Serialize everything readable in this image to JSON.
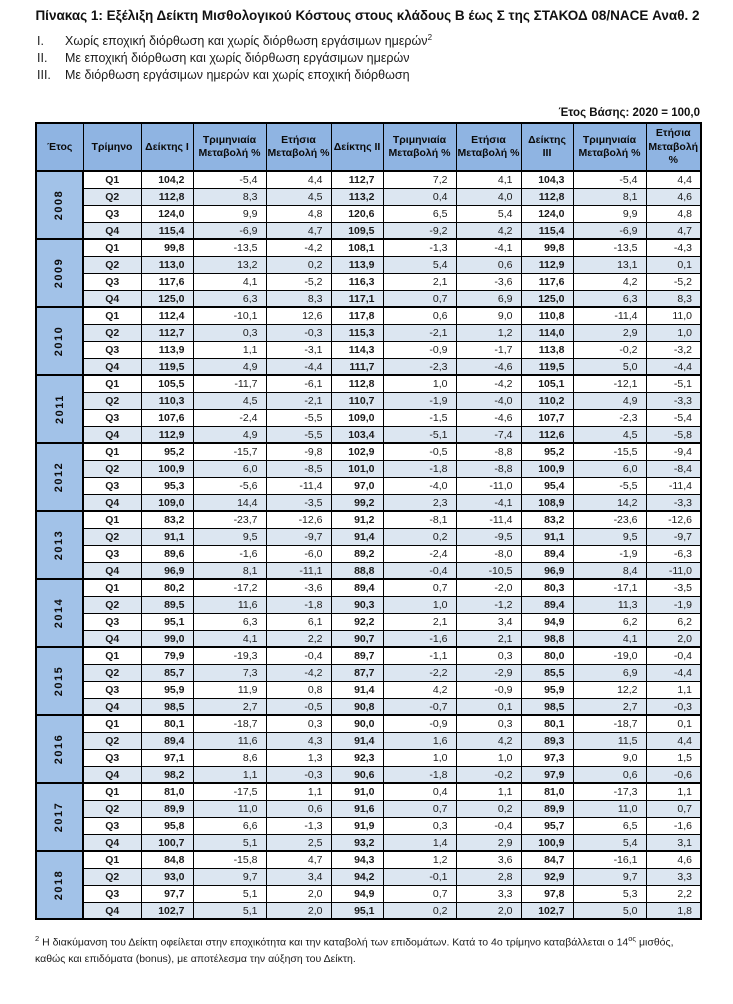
{
  "page": {
    "title": "Πίνακας 1: Εξέλιξη Δείκτη Μισθολογικού Κόστους στους κλάδους Β έως Σ της ΣΤΑΚΟΔ 08/NACE Αναθ. 2",
    "definitions": [
      {
        "num": "I.",
        "text": "Χωρίς εποχική διόρθωση και χωρίς διόρθωση εργάσιμων ημερών",
        "sup": "2"
      },
      {
        "num": "II.",
        "text": "Με εποχική διόρθωση και χωρίς διόρθωση εργάσιμων ημερών",
        "sup": ""
      },
      {
        "num": "III.",
        "text": "Με διόρθωση εργάσιμων ημερών και χωρίς εποχική διόρθωση",
        "sup": ""
      }
    ],
    "base_year": "Έτος Βάσης: 2020 = 100,0"
  },
  "colors": {
    "header_blue": "#8FB4E2",
    "year_blue": "#A2C2E8",
    "alt_row_blue": "#DCE6F1",
    "border": "#000000"
  },
  "table": {
    "headers": [
      "Έτος",
      "Τρίμηνο",
      "Δείκτης I",
      "Τριμηνιαία Μεταβολή %",
      "Ετήσια Μεταβολή %",
      "Δείκτης II",
      "Τριμηνιαία Μεταβολή %",
      "Ετήσια Μεταβολή %",
      "Δείκτης III",
      "Τριμηνιαία Μεταβολή %",
      "Ετήσια Μεταβολή %"
    ],
    "years": [
      {
        "year": "2008",
        "rows": [
          [
            "Q1",
            "104,2",
            "-5,4",
            "4,4",
            "112,7",
            "7,2",
            "4,1",
            "104,3",
            "-5,4",
            "4,4"
          ],
          [
            "Q2",
            "112,8",
            "8,3",
            "4,5",
            "113,2",
            "0,4",
            "4,0",
            "112,8",
            "8,1",
            "4,6"
          ],
          [
            "Q3",
            "124,0",
            "9,9",
            "4,8",
            "120,6",
            "6,5",
            "5,4",
            "124,0",
            "9,9",
            "4,8"
          ],
          [
            "Q4",
            "115,4",
            "-6,9",
            "4,7",
            "109,5",
            "-9,2",
            "4,2",
            "115,4",
            "-6,9",
            "4,7"
          ]
        ]
      },
      {
        "year": "2009",
        "rows": [
          [
            "Q1",
            "99,8",
            "-13,5",
            "-4,2",
            "108,1",
            "-1,3",
            "-4,1",
            "99,8",
            "-13,5",
            "-4,3"
          ],
          [
            "Q2",
            "113,0",
            "13,2",
            "0,2",
            "113,9",
            "5,4",
            "0,6",
            "112,9",
            "13,1",
            "0,1"
          ],
          [
            "Q3",
            "117,6",
            "4,1",
            "-5,2",
            "116,3",
            "2,1",
            "-3,6",
            "117,6",
            "4,2",
            "-5,2"
          ],
          [
            "Q4",
            "125,0",
            "6,3",
            "8,3",
            "117,1",
            "0,7",
            "6,9",
            "125,0",
            "6,3",
            "8,3"
          ]
        ]
      },
      {
        "year": "2010",
        "rows": [
          [
            "Q1",
            "112,4",
            "-10,1",
            "12,6",
            "117,8",
            "0,6",
            "9,0",
            "110,8",
            "-11,4",
            "11,0"
          ],
          [
            "Q2",
            "112,7",
            "0,3",
            "-0,3",
            "115,3",
            "-2,1",
            "1,2",
            "114,0",
            "2,9",
            "1,0"
          ],
          [
            "Q3",
            "113,9",
            "1,1",
            "-3,1",
            "114,3",
            "-0,9",
            "-1,7",
            "113,8",
            "-0,2",
            "-3,2"
          ],
          [
            "Q4",
            "119,5",
            "4,9",
            "-4,4",
            "111,7",
            "-2,3",
            "-4,6",
            "119,5",
            "5,0",
            "-4,4"
          ]
        ]
      },
      {
        "year": "2011",
        "rows": [
          [
            "Q1",
            "105,5",
            "-11,7",
            "-6,1",
            "112,8",
            "1,0",
            "-4,2",
            "105,1",
            "-12,1",
            "-5,1"
          ],
          [
            "Q2",
            "110,3",
            "4,5",
            "-2,1",
            "110,7",
            "-1,9",
            "-4,0",
            "110,2",
            "4,9",
            "-3,3"
          ],
          [
            "Q3",
            "107,6",
            "-2,4",
            "-5,5",
            "109,0",
            "-1,5",
            "-4,6",
            "107,7",
            "-2,3",
            "-5,4"
          ],
          [
            "Q4",
            "112,9",
            "4,9",
            "-5,5",
            "103,4",
            "-5,1",
            "-7,4",
            "112,6",
            "4,5",
            "-5,8"
          ]
        ]
      },
      {
        "year": "2012",
        "rows": [
          [
            "Q1",
            "95,2",
            "-15,7",
            "-9,8",
            "102,9",
            "-0,5",
            "-8,8",
            "95,2",
            "-15,5",
            "-9,4"
          ],
          [
            "Q2",
            "100,9",
            "6,0",
            "-8,5",
            "101,0",
            "-1,8",
            "-8,8",
            "100,9",
            "6,0",
            "-8,4"
          ],
          [
            "Q3",
            "95,3",
            "-5,6",
            "-11,4",
            "97,0",
            "-4,0",
            "-11,0",
            "95,4",
            "-5,5",
            "-11,4"
          ],
          [
            "Q4",
            "109,0",
            "14,4",
            "-3,5",
            "99,2",
            "2,3",
            "-4,1",
            "108,9",
            "14,2",
            "-3,3"
          ]
        ]
      },
      {
        "year": "2013",
        "rows": [
          [
            "Q1",
            "83,2",
            "-23,7",
            "-12,6",
            "91,2",
            "-8,1",
            "-11,4",
            "83,2",
            "-23,6",
            "-12,6"
          ],
          [
            "Q2",
            "91,1",
            "9,5",
            "-9,7",
            "91,4",
            "0,2",
            "-9,5",
            "91,1",
            "9,5",
            "-9,7"
          ],
          [
            "Q3",
            "89,6",
            "-1,6",
            "-6,0",
            "89,2",
            "-2,4",
            "-8,0",
            "89,4",
            "-1,9",
            "-6,3"
          ],
          [
            "Q4",
            "96,9",
            "8,1",
            "-11,1",
            "88,8",
            "-0,4",
            "-10,5",
            "96,9",
            "8,4",
            "-11,0"
          ]
        ]
      },
      {
        "year": "2014",
        "rows": [
          [
            "Q1",
            "80,2",
            "-17,2",
            "-3,6",
            "89,4",
            "0,7",
            "-2,0",
            "80,3",
            "-17,1",
            "-3,5"
          ],
          [
            "Q2",
            "89,5",
            "11,6",
            "-1,8",
            "90,3",
            "1,0",
            "-1,2",
            "89,4",
            "11,3",
            "-1,9"
          ],
          [
            "Q3",
            "95,1",
            "6,3",
            "6,1",
            "92,2",
            "2,1",
            "3,4",
            "94,9",
            "6,2",
            "6,2"
          ],
          [
            "Q4",
            "99,0",
            "4,1",
            "2,2",
            "90,7",
            "-1,6",
            "2,1",
            "98,8",
            "4,1",
            "2,0"
          ]
        ]
      },
      {
        "year": "2015",
        "rows": [
          [
            "Q1",
            "79,9",
            "-19,3",
            "-0,4",
            "89,7",
            "-1,1",
            "0,3",
            "80,0",
            "-19,0",
            "-0,4"
          ],
          [
            "Q2",
            "85,7",
            "7,3",
            "-4,2",
            "87,7",
            "-2,2",
            "-2,9",
            "85,5",
            "6,9",
            "-4,4"
          ],
          [
            "Q3",
            "95,9",
            "11,9",
            "0,8",
            "91,4",
            "4,2",
            "-0,9",
            "95,9",
            "12,2",
            "1,1"
          ],
          [
            "Q4",
            "98,5",
            "2,7",
            "-0,5",
            "90,8",
            "-0,7",
            "0,1",
            "98,5",
            "2,7",
            "-0,3"
          ]
        ]
      },
      {
        "year": "2016",
        "rows": [
          [
            "Q1",
            "80,1",
            "-18,7",
            "0,3",
            "90,0",
            "-0,9",
            "0,3",
            "80,1",
            "-18,7",
            "0,1"
          ],
          [
            "Q2",
            "89,4",
            "11,6",
            "4,3",
            "91,4",
            "1,6",
            "4,2",
            "89,3",
            "11,5",
            "4,4"
          ],
          [
            "Q3",
            "97,1",
            "8,6",
            "1,3",
            "92,3",
            "1,0",
            "1,0",
            "97,3",
            "9,0",
            "1,5"
          ],
          [
            "Q4",
            "98,2",
            "1,1",
            "-0,3",
            "90,6",
            "-1,8",
            "-0,2",
            "97,9",
            "0,6",
            "-0,6"
          ]
        ]
      },
      {
        "year": "2017",
        "rows": [
          [
            "Q1",
            "81,0",
            "-17,5",
            "1,1",
            "91,0",
            "0,4",
            "1,1",
            "81,0",
            "-17,3",
            "1,1"
          ],
          [
            "Q2",
            "89,9",
            "11,0",
            "0,6",
            "91,6",
            "0,7",
            "0,2",
            "89,9",
            "11,0",
            "0,7"
          ],
          [
            "Q3",
            "95,8",
            "6,6",
            "-1,3",
            "91,9",
            "0,3",
            "-0,4",
            "95,7",
            "6,5",
            "-1,6"
          ],
          [
            "Q4",
            "100,7",
            "5,1",
            "2,5",
            "93,2",
            "1,4",
            "2,9",
            "100,9",
            "5,4",
            "3,1"
          ]
        ]
      },
      {
        "year": "2018",
        "rows": [
          [
            "Q1",
            "84,8",
            "-15,8",
            "4,7",
            "94,3",
            "1,2",
            "3,6",
            "84,7",
            "-16,1",
            "4,6"
          ],
          [
            "Q2",
            "93,0",
            "9,7",
            "3,4",
            "94,2",
            "-0,1",
            "2,8",
            "92,9",
            "9,7",
            "3,3"
          ],
          [
            "Q3",
            "97,7",
            "5,1",
            "2,0",
            "94,9",
            "0,7",
            "3,3",
            "97,8",
            "5,3",
            "2,2"
          ],
          [
            "Q4",
            "102,7",
            "5,1",
            "2,0",
            "95,1",
            "0,2",
            "2,0",
            "102,7",
            "5,0",
            "1,8"
          ]
        ]
      }
    ]
  },
  "footnote": {
    "sup1": "2",
    "part1": " Η διακύμανση του Δείκτη οφείλεται στην εποχικότητα και την καταβολή των επιδομάτων. Κατά το 4ο τρίμηνο καταβάλλεται ο 14",
    "sup2": "ος",
    "part2": " μισθός, καθώς και επιδόματα (bonus), με αποτέλεσμα την αύξηση του Δείκτη."
  }
}
